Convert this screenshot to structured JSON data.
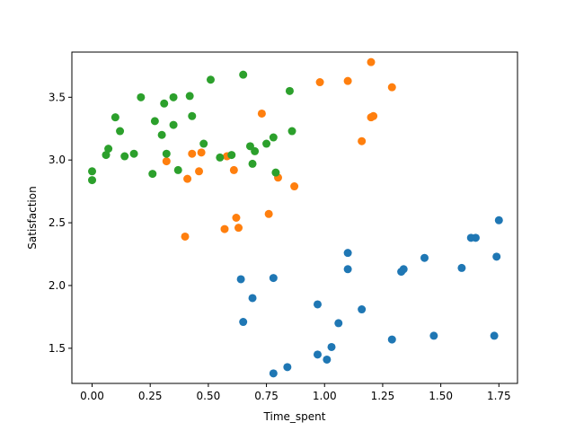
{
  "chart_data": {
    "type": "scatter",
    "title": "",
    "xlabel": "Time_spent",
    "ylabel": "Satisfaction",
    "xlim": [
      -0.087,
      1.83
    ],
    "ylim": [
      1.22,
      3.86
    ],
    "xticks": [
      0.0,
      0.25,
      0.5,
      0.75,
      1.0,
      1.25,
      1.5,
      1.75
    ],
    "xtick_labels": [
      "0.00",
      "0.25",
      "0.50",
      "0.75",
      "1.00",
      "1.25",
      "1.50",
      "1.75"
    ],
    "yticks": [
      1.5,
      2.0,
      2.5,
      3.0,
      3.5
    ],
    "ytick_labels": [
      "1.5",
      "2.0",
      "2.5",
      "3.0",
      "3.5"
    ],
    "grid": false,
    "legend": false,
    "series": [
      {
        "color": "#1f77b4",
        "points": [
          {
            "x": 0.64,
            "y": 2.05
          },
          {
            "x": 0.65,
            "y": 1.71
          },
          {
            "x": 0.69,
            "y": 1.9
          },
          {
            "x": 0.78,
            "y": 2.06
          },
          {
            "x": 0.78,
            "y": 1.3
          },
          {
            "x": 0.84,
            "y": 1.35
          },
          {
            "x": 0.97,
            "y": 1.85
          },
          {
            "x": 0.97,
            "y": 1.45
          },
          {
            "x": 1.01,
            "y": 1.41
          },
          {
            "x": 1.03,
            "y": 1.51
          },
          {
            "x": 1.06,
            "y": 1.7
          },
          {
            "x": 1.1,
            "y": 2.26
          },
          {
            "x": 1.1,
            "y": 2.13
          },
          {
            "x": 1.16,
            "y": 1.81
          },
          {
            "x": 1.29,
            "y": 1.57
          },
          {
            "x": 1.33,
            "y": 2.11
          },
          {
            "x": 1.34,
            "y": 2.13
          },
          {
            "x": 1.43,
            "y": 2.22
          },
          {
            "x": 1.47,
            "y": 1.6
          },
          {
            "x": 1.59,
            "y": 2.14
          },
          {
            "x": 1.63,
            "y": 2.38
          },
          {
            "x": 1.65,
            "y": 2.38
          },
          {
            "x": 1.73,
            "y": 1.6
          },
          {
            "x": 1.74,
            "y": 2.23
          },
          {
            "x": 1.75,
            "y": 2.52
          }
        ]
      },
      {
        "color": "#ff7f0e",
        "points": [
          {
            "x": 0.32,
            "y": 2.99
          },
          {
            "x": 0.4,
            "y": 2.39
          },
          {
            "x": 0.41,
            "y": 2.85
          },
          {
            "x": 0.43,
            "y": 3.05
          },
          {
            "x": 0.46,
            "y": 2.91
          },
          {
            "x": 0.47,
            "y": 3.06
          },
          {
            "x": 0.57,
            "y": 2.45
          },
          {
            "x": 0.58,
            "y": 3.03
          },
          {
            "x": 0.61,
            "y": 2.92
          },
          {
            "x": 0.62,
            "y": 2.54
          },
          {
            "x": 0.63,
            "y": 2.46
          },
          {
            "x": 0.73,
            "y": 3.37
          },
          {
            "x": 0.76,
            "y": 2.57
          },
          {
            "x": 0.8,
            "y": 2.86
          },
          {
            "x": 0.87,
            "y": 2.79
          },
          {
            "x": 0.98,
            "y": 3.62
          },
          {
            "x": 1.1,
            "y": 3.63
          },
          {
            "x": 1.16,
            "y": 3.15
          },
          {
            "x": 1.2,
            "y": 3.34
          },
          {
            "x": 1.2,
            "y": 3.78
          },
          {
            "x": 1.21,
            "y": 3.35
          },
          {
            "x": 1.29,
            "y": 3.58
          }
        ]
      },
      {
        "color": "#2ca02c",
        "points": [
          {
            "x": 0.0,
            "y": 2.91
          },
          {
            "x": 0.0,
            "y": 2.84
          },
          {
            "x": 0.06,
            "y": 3.04
          },
          {
            "x": 0.07,
            "y": 3.09
          },
          {
            "x": 0.1,
            "y": 3.34
          },
          {
            "x": 0.12,
            "y": 3.23
          },
          {
            "x": 0.14,
            "y": 3.03
          },
          {
            "x": 0.18,
            "y": 3.05
          },
          {
            "x": 0.21,
            "y": 3.5
          },
          {
            "x": 0.26,
            "y": 2.89
          },
          {
            "x": 0.27,
            "y": 3.31
          },
          {
            "x": 0.3,
            "y": 3.2
          },
          {
            "x": 0.31,
            "y": 3.45
          },
          {
            "x": 0.32,
            "y": 3.05
          },
          {
            "x": 0.35,
            "y": 3.28
          },
          {
            "x": 0.35,
            "y": 3.5
          },
          {
            "x": 0.37,
            "y": 2.92
          },
          {
            "x": 0.42,
            "y": 3.51
          },
          {
            "x": 0.43,
            "y": 3.35
          },
          {
            "x": 0.48,
            "y": 3.13
          },
          {
            "x": 0.51,
            "y": 3.64
          },
          {
            "x": 0.55,
            "y": 3.02
          },
          {
            "x": 0.6,
            "y": 3.04
          },
          {
            "x": 0.65,
            "y": 3.68
          },
          {
            "x": 0.68,
            "y": 3.11
          },
          {
            "x": 0.69,
            "y": 2.97
          },
          {
            "x": 0.7,
            "y": 3.07
          },
          {
            "x": 0.75,
            "y": 3.13
          },
          {
            "x": 0.78,
            "y": 3.18
          },
          {
            "x": 0.79,
            "y": 2.9
          },
          {
            "x": 0.85,
            "y": 3.55
          },
          {
            "x": 0.86,
            "y": 3.23
          }
        ]
      }
    ]
  }
}
